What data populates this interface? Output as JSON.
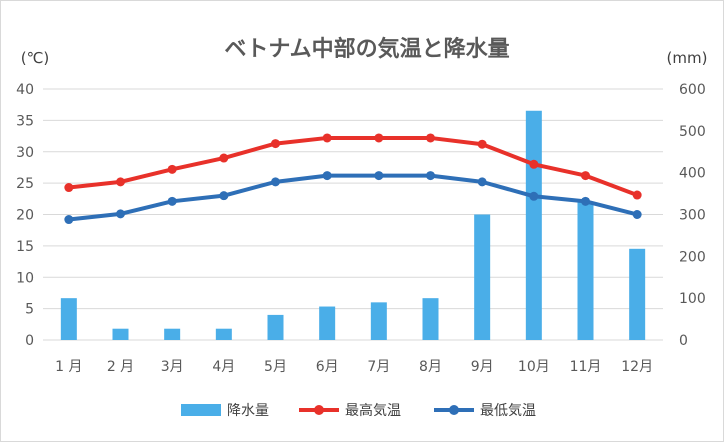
{
  "chart_data": {
    "type": "bar+line",
    "title": "ベトナム中部の気温と降水量",
    "left_unit": "(℃)",
    "right_unit": "(mm)",
    "categories": [
      "1 月",
      "2 月",
      "3月",
      "4月",
      "5月",
      "6月",
      "7月",
      "8月",
      "9月",
      "10月",
      "11月",
      "12月"
    ],
    "left_axis": {
      "ylim": [
        0,
        40
      ],
      "ticks": [
        "0",
        "5",
        "10",
        "15",
        "20",
        "25",
        "30",
        "35",
        "40"
      ]
    },
    "right_axis": {
      "ylim": [
        0,
        600
      ],
      "ticks": [
        "0",
        "100",
        "200",
        "300",
        "400",
        "500",
        "600"
      ]
    },
    "grid": true,
    "legend_position": "bottom",
    "series": [
      {
        "name": "降水量",
        "kind": "bar",
        "axis": "right",
        "color": "#4aaee8",
        "values": [
          100,
          27,
          27,
          27,
          60,
          80,
          90,
          100,
          300,
          548,
          330,
          218
        ]
      },
      {
        "name": "最高気温",
        "kind": "line",
        "axis": "left",
        "color": "#e8312a",
        "values": [
          24.3,
          25.2,
          27.2,
          29.0,
          31.3,
          32.2,
          32.2,
          32.2,
          31.2,
          28.0,
          26.2,
          23.1
        ]
      },
      {
        "name": "最低気温",
        "kind": "line",
        "axis": "left",
        "color": "#2e6fb7",
        "values": [
          19.2,
          20.1,
          22.1,
          23.0,
          25.2,
          26.2,
          26.2,
          26.2,
          25.2,
          22.9,
          22.1,
          20.0
        ]
      }
    ]
  }
}
